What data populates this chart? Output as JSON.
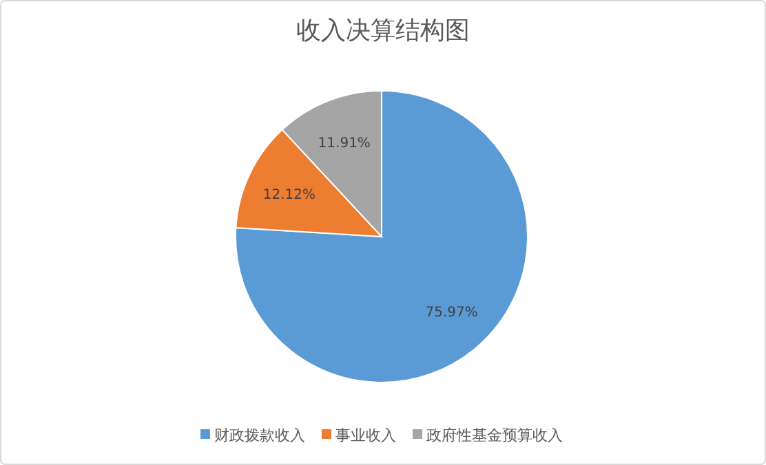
{
  "chart_data": {
    "type": "pie",
    "title": "收入决算结构图",
    "categories": [
      "财政拨款收入",
      "事业收入",
      "政府性基金预算收入"
    ],
    "values": [
      75.97,
      12.12,
      11.91
    ],
    "colors": [
      "#5b9bd5",
      "#ed7d31",
      "#a5a5a5"
    ],
    "value_labels": [
      "75.97%",
      "12.12%",
      "11.91%"
    ],
    "legend": "bottom"
  }
}
